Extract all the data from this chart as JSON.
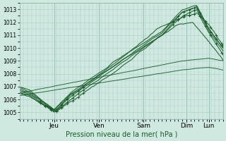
{
  "xlabel": "Pression niveau de la mer( hPa )",
  "background_color": "#cfe8e0",
  "grid_color": "#aacfc5",
  "line_color": "#1a5c2a",
  "ylim": [
    1004.5,
    1013.5
  ],
  "yticks": [
    1005,
    1006,
    1007,
    1008,
    1009,
    1010,
    1011,
    1012,
    1013
  ],
  "day_labels": [
    "Jeu",
    "Ven",
    "Sam",
    "Dim",
    "Lun"
  ],
  "day_positions": [
    0.17,
    0.39,
    0.61,
    0.82,
    0.93
  ],
  "xlim": [
    0.0,
    1.0
  ]
}
